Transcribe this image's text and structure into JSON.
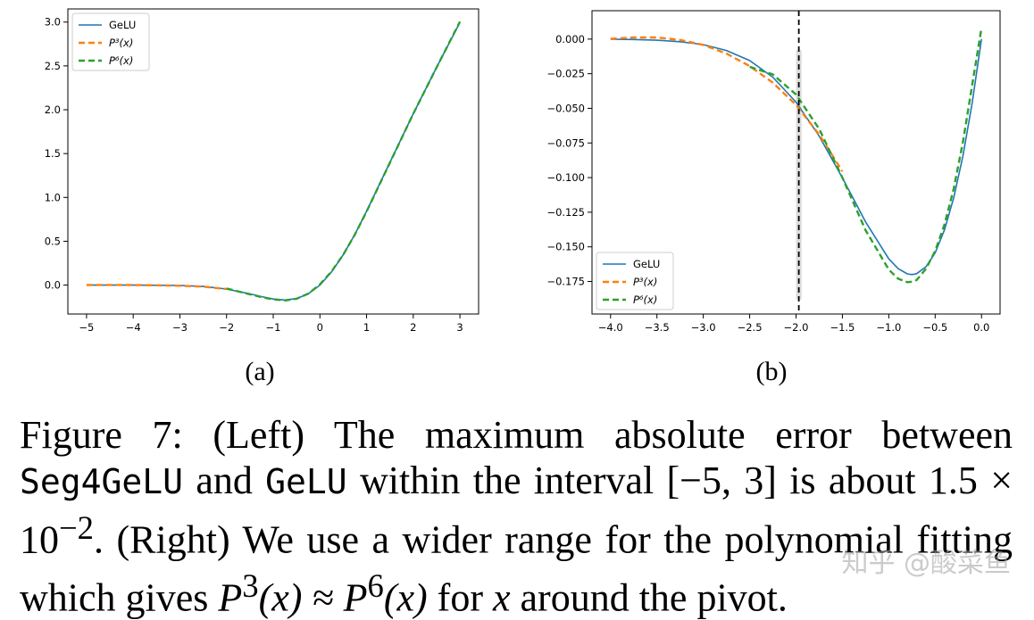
{
  "chart_data": [
    {
      "type": "line",
      "panel": "(a)",
      "xlim": [
        -5.4,
        3.4
      ],
      "ylim": [
        -0.33,
        3.15
      ],
      "xticks": [
        -5,
        -4,
        -3,
        -2,
        -1,
        0,
        1,
        2,
        3
      ],
      "xtick_labels": [
        "−5",
        "−4",
        "−3",
        "−2",
        "−1",
        "0",
        "1",
        "2",
        "3"
      ],
      "yticks": [
        0.0,
        0.5,
        1.0,
        1.5,
        2.0,
        2.5,
        3.0
      ],
      "ytick_labels": [
        "0.0",
        "0.5",
        "1.0",
        "1.5",
        "2.0",
        "2.5",
        "3.0"
      ],
      "legend_position": "top-left",
      "series": [
        {
          "name": "GeLU",
          "style": "solid",
          "color": "#1f77b4",
          "x": [
            -5,
            -4,
            -3,
            -2.5,
            -2,
            -1.5,
            -1.25,
            -1,
            -0.75,
            -0.5,
            -0.25,
            0,
            0.25,
            0.5,
            0.75,
            1,
            1.5,
            2,
            2.5,
            3
          ],
          "y": [
            0,
            -0.0001,
            -0.004,
            -0.0155,
            -0.0455,
            -0.1002,
            -0.132,
            -0.1587,
            -0.17,
            -0.1543,
            -0.1002,
            0,
            0.1498,
            0.3457,
            0.58,
            0.8413,
            1.3998,
            1.9545,
            2.4845,
            2.996
          ]
        },
        {
          "name": "P³(x)",
          "style": "dashed",
          "color": "#ff7f0e",
          "x": [
            -5,
            -4.5,
            -4,
            -3.5,
            -3,
            -2.5,
            -2
          ],
          "y": [
            0.001,
            0.0015,
            0.001,
            -0.002,
            -0.007,
            -0.018,
            -0.045
          ]
        },
        {
          "name": "P⁶(x)",
          "style": "dashed",
          "color": "#2ca02c",
          "x": [
            -2,
            -1.5,
            -1.25,
            -1,
            -0.75,
            -0.5,
            -0.25,
            0,
            0.25,
            0.5,
            0.75,
            1,
            1.5,
            2,
            2.5,
            3
          ],
          "y": [
            -0.039,
            -0.105,
            -0.138,
            -0.163,
            -0.175,
            -0.156,
            -0.098,
            0.008,
            0.155,
            0.347,
            0.578,
            0.838,
            1.397,
            1.953,
            2.484,
            3.004
          ]
        }
      ]
    },
    {
      "type": "line",
      "panel": "(b)",
      "xlim": [
        -4.2,
        0.2
      ],
      "ylim": [
        -0.1985,
        0.0205
      ],
      "xticks": [
        -4.0,
        -3.5,
        -3.0,
        -2.5,
        -2.0,
        -1.5,
        -1.0,
        -0.5,
        0.0
      ],
      "xtick_labels": [
        "−4.0",
        "−3.5",
        "−3.0",
        "−2.5",
        "−2.0",
        "−1.5",
        "−1.0",
        "−0.5",
        "0.0"
      ],
      "yticks": [
        0.0,
        -0.025,
        -0.05,
        -0.075,
        -0.1,
        -0.125,
        -0.15,
        -0.175
      ],
      "ytick_labels": [
        "0.000",
        "−0.025",
        "−0.050",
        "−0.075",
        "−0.100",
        "−0.125",
        "−0.150",
        "−0.175"
      ],
      "legend_position": "bottom-left",
      "pivot_line": {
        "x": -1.97,
        "style": "dashed",
        "color": "#000000"
      },
      "pivot_band": {
        "x0": -2.0,
        "x1": -1.94,
        "y0": -0.188,
        "y1": -0.008,
        "color": "#d3d3d3"
      },
      "series": [
        {
          "name": "GeLU",
          "style": "solid",
          "color": "#1f77b4",
          "x": [
            -4,
            -3.75,
            -3.5,
            -3.25,
            -3,
            -2.75,
            -2.5,
            -2.25,
            -2,
            -1.75,
            -1.5,
            -1.25,
            -1,
            -0.9,
            -0.8,
            -0.75,
            -0.7,
            -0.6,
            -0.5,
            -0.4,
            -0.3,
            -0.2,
            -0.1,
            0
          ],
          "y": [
            -0.0001,
            -0.0003,
            -0.0008,
            -0.0019,
            -0.004,
            -0.0082,
            -0.0155,
            -0.0275,
            -0.0455,
            -0.0701,
            -0.1002,
            -0.132,
            -0.1587,
            -0.1657,
            -0.1695,
            -0.17,
            -0.1694,
            -0.1645,
            -0.1543,
            -0.1378,
            -0.1146,
            -0.0841,
            -0.046,
            0
          ]
        },
        {
          "name": "P³(x)",
          "style": "dashed",
          "color": "#ff7f0e",
          "x": [
            -4,
            -3.75,
            -3.5,
            -3.25,
            -3,
            -2.75,
            -2.5,
            -2.25,
            -2,
            -1.75,
            -1.5
          ],
          "y": [
            0.0002,
            0.0012,
            0.0012,
            -0.0006,
            -0.0042,
            -0.0105,
            -0.0195,
            -0.0315,
            -0.0475,
            -0.069,
            -0.0955
          ]
        },
        {
          "name": "P⁶(x)",
          "style": "dashed",
          "color": "#2ca02c",
          "x": [
            -2.5,
            -2.25,
            -2,
            -1.75,
            -1.5,
            -1.25,
            -1,
            -0.9,
            -0.8,
            -0.75,
            -0.7,
            -0.6,
            -0.5,
            -0.4,
            -0.3,
            -0.2,
            -0.1,
            0
          ],
          "y": [
            -0.02,
            -0.0255,
            -0.04,
            -0.065,
            -0.1,
            -0.138,
            -0.1665,
            -0.173,
            -0.1755,
            -0.1752,
            -0.174,
            -0.166,
            -0.153,
            -0.134,
            -0.108,
            -0.074,
            -0.033,
            0.008
          ]
        }
      ]
    }
  ],
  "subfigure_labels": [
    "(a)",
    "(b)"
  ],
  "caption": {
    "p1": "Figure 7: (Left) The maximum absolute error between ",
    "code1": "Seg4GeLU",
    "p2": " and ",
    "code2": "GeLU",
    "p3": " within the interval [−5, 3] is about 1.5 × 10",
    "exp1": "−2",
    "p4": ". (Right) We use a wider range for the polynomial fitting which gives ",
    "math1": "P",
    "exp2": "3",
    "math2": "(x) ≈ ",
    "math3": "P",
    "exp3": "6",
    "math4": "(x)",
    "p5": " for ",
    "math5": "x",
    "p6": " around the pivot."
  },
  "watermark": "知乎 @酸菜鱼"
}
